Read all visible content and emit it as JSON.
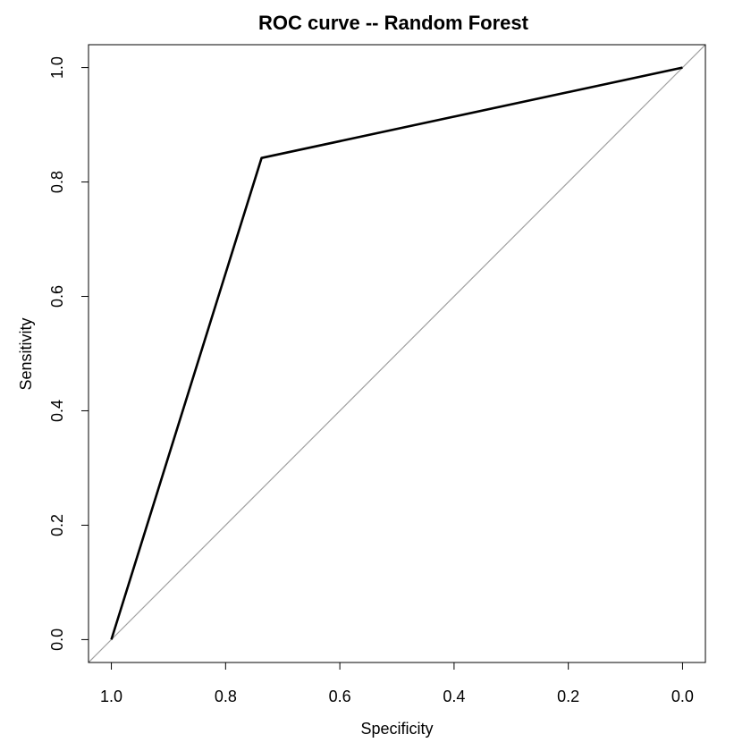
{
  "chart_data": {
    "type": "line",
    "title": "ROC curve -- Random Forest",
    "xlabel": "Specificity",
    "ylabel": "Sensitivity",
    "x_reversed": true,
    "xlim": [
      1.04,
      -0.04
    ],
    "ylim": [
      -0.04,
      1.04
    ],
    "x_ticks": [
      "1.0",
      "0.8",
      "0.6",
      "0.4",
      "0.2",
      "0.0"
    ],
    "x_tick_values": [
      1.0,
      0.8,
      0.6,
      0.4,
      0.2,
      0.0
    ],
    "y_ticks": [
      "0.0",
      "0.2",
      "0.4",
      "0.6",
      "0.8",
      "1.0"
    ],
    "y_tick_values": [
      0.0,
      0.2,
      0.4,
      0.6,
      0.8,
      1.0
    ],
    "grid": false,
    "series": [
      {
        "specificity": [
          1.0,
          0.737,
          0.0
        ],
        "sensitivity": [
          0.0,
          0.842,
          1.0
        ],
        "color": "#000000"
      }
    ],
    "reference_line": {
      "specificity": [
        1.0,
        0.0
      ],
      "sensitivity": [
        0.0,
        1.0
      ],
      "color": "#a0a0a0"
    }
  }
}
